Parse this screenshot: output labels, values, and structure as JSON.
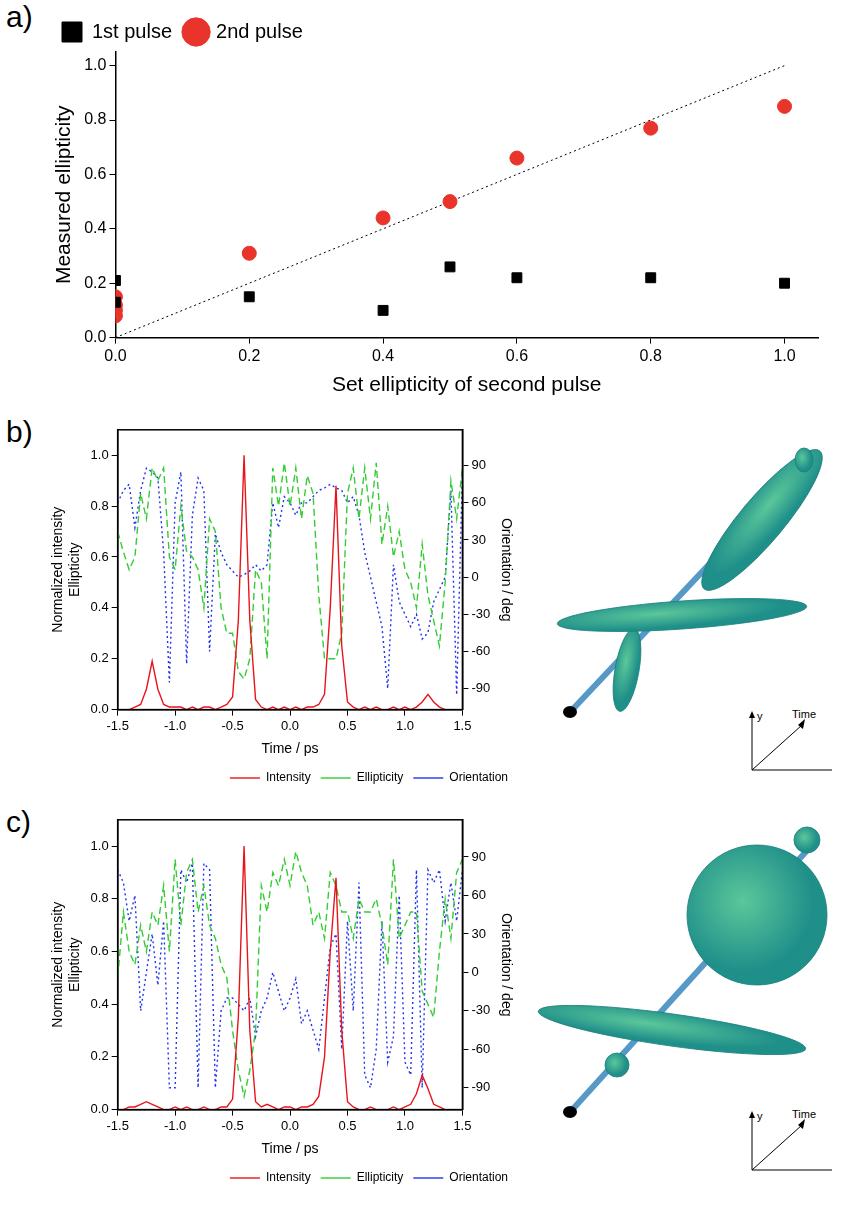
{
  "chart_data": [
    {
      "panel": "a)",
      "type": "scatter",
      "xlabel": "Set ellipticity of second pulse",
      "ylabel": "Measured ellipticity",
      "xlim": [
        0,
        1.05
      ],
      "ylim": [
        0,
        1.05
      ],
      "xticks": [
        {
          "value": 0,
          "label": "0.0"
        },
        {
          "value": 0.2,
          "label": "0.2"
        },
        {
          "value": 0.4,
          "label": "0.4"
        },
        {
          "value": 0.6,
          "label": "0.6"
        },
        {
          "value": 0.8,
          "label": "0.8"
        },
        {
          "value": 1,
          "label": "1.0"
        }
      ],
      "yticks": [
        {
          "value": 0,
          "label": "0.0"
        },
        {
          "value": 0.2,
          "label": "0.2"
        },
        {
          "value": 0.4,
          "label": "0.4"
        },
        {
          "value": 0.6,
          "label": "0.6"
        },
        {
          "value": 0.8,
          "label": "0.8"
        },
        {
          "value": 1,
          "label": "1.0"
        }
      ],
      "grid": false,
      "legend": "top-left",
      "series": [
        {
          "name": "1st pulse",
          "color": "#000000",
          "marker": "square",
          "x": [
            0,
            0,
            0.2,
            0.4,
            0.5,
            0.6,
            0.8,
            1.0
          ],
          "values": [
            0.21,
            0.13,
            0.15,
            0.1,
            0.26,
            0.22,
            0.22,
            0.2
          ]
        },
        {
          "name": "2nd pulse",
          "color": "#e8342a",
          "marker": "circle",
          "x": [
            0,
            0,
            0,
            0,
            0.2,
            0.4,
            0.5,
            0.6,
            0.8,
            1.0
          ],
          "values": [
            0.15,
            0.12,
            0.1,
            0.08,
            0.31,
            0.44,
            0.5,
            0.66,
            0.77,
            0.85
          ]
        },
        {
          "type": "line",
          "color": "#000000",
          "line_style": "dotted",
          "marker": "none",
          "x": [
            0,
            1
          ],
          "values": [
            0,
            1
          ]
        }
      ]
    },
    {
      "panel": "b)",
      "type": "line",
      "xlabel": "Time / ps",
      "ylabel": [
        "Normalized intensity",
        "Ellipticity"
      ],
      "y2label": "Orientation / deg",
      "xlim": [
        -1.5,
        1.5
      ],
      "ylim": [
        0,
        1.1
      ],
      "y2lim": [
        -107,
        119
      ],
      "xticks": [
        {
          "value": -1.5,
          "label": "-1.5"
        },
        {
          "value": -1,
          "label": "-1.0"
        },
        {
          "value": -0.5,
          "label": "-0.5"
        },
        {
          "value": 0,
          "label": "0.0"
        },
        {
          "value": 0.5,
          "label": "0.5"
        },
        {
          "value": 1,
          "label": "1.0"
        },
        {
          "value": 1.5,
          "label": "1.5"
        }
      ],
      "yticks": [
        {
          "value": 0,
          "label": "0.0"
        },
        {
          "value": 0.2,
          "label": "0.2"
        },
        {
          "value": 0.4,
          "label": "0.4"
        },
        {
          "value": 0.6,
          "label": "0.6"
        },
        {
          "value": 0.8,
          "label": "0.8"
        },
        {
          "value": 1,
          "label": "1.0"
        }
      ],
      "y2ticks": [
        -90,
        -60,
        -30,
        0,
        30,
        60,
        90
      ],
      "grid": false,
      "legend": "bottom-right",
      "inset_axes": [
        "y",
        "Time"
      ],
      "x": [
        -1.5,
        -1.45,
        -1.4,
        -1.35,
        -1.3,
        -1.25,
        -1.2,
        -1.15,
        -1.1,
        -1.05,
        -1.0,
        -0.95,
        -0.9,
        -0.85,
        -0.8,
        -0.75,
        -0.7,
        -0.65,
        -0.6,
        -0.55,
        -0.5,
        -0.45,
        -0.4,
        -0.35,
        -0.3,
        -0.25,
        -0.2,
        -0.15,
        -0.1,
        -0.05,
        0,
        0.05,
        0.1,
        0.15,
        0.2,
        0.25,
        0.3,
        0.35,
        0.4,
        0.45,
        0.5,
        0.55,
        0.6,
        0.65,
        0.7,
        0.75,
        0.8,
        0.85,
        0.9,
        0.95,
        1.0,
        1.05,
        1.1,
        1.15,
        1.2,
        1.25,
        1.3,
        1.35,
        1.4,
        1.45,
        1.5
      ],
      "series": [
        {
          "name": "Intensity",
          "color": "#e8141b",
          "line_style": "solid",
          "values": [
            0,
            0,
            0,
            0.01,
            0.02,
            0.08,
            0.19,
            0.08,
            0.02,
            0.01,
            0.01,
            0.01,
            0,
            0.01,
            0,
            0.01,
            0.01,
            0,
            0.01,
            0.02,
            0.05,
            0.35,
            1.0,
            0.35,
            0.04,
            0.01,
            0,
            0.01,
            0,
            0.01,
            0,
            0.01,
            0,
            0.01,
            0.01,
            0.02,
            0.06,
            0.4,
            0.88,
            0.25,
            0.03,
            0.01,
            0,
            0.01,
            0,
            0.01,
            0,
            0,
            0.01,
            0,
            0.01,
            0,
            0.01,
            0.03,
            0.06,
            0.03,
            0.01,
            0,
            0,
            0,
            0
          ]
        },
        {
          "name": "Ellipticity",
          "color": "#33cc33",
          "line_style": "dashed",
          "values": [
            0.7,
            0.62,
            0.55,
            0.6,
            0.85,
            0.75,
            0.95,
            0.9,
            0.95,
            0.6,
            0.55,
            0.8,
            0.62,
            0.6,
            0.55,
            0.4,
            0.75,
            0.7,
            0.4,
            0.3,
            0.3,
            0.15,
            0.12,
            0.2,
            0.55,
            0.5,
            0.2,
            0.95,
            0.8,
            0.97,
            0.8,
            0.95,
            0.75,
            0.92,
            0.85,
            0.45,
            0.2,
            0.2,
            0.2,
            0.3,
            0.85,
            0.95,
            0.75,
            0.95,
            0.75,
            0.97,
            0.65,
            0.8,
            0.6,
            0.7,
            0.55,
            0.5,
            0.4,
            0.65,
            0.45,
            0.35,
            0.25,
            0.5,
            0.9,
            0.75,
            0.95
          ]
        },
        {
          "name": "Orientation",
          "color": "#2233ee",
          "line_style": "dotted",
          "axis": "y2",
          "values": [
            60,
            70,
            75,
            40,
            70,
            88,
            85,
            80,
            20,
            -85,
            60,
            85,
            -70,
            50,
            80,
            70,
            -60,
            35,
            20,
            10,
            5,
            0,
            2,
            5,
            10,
            5,
            10,
            60,
            40,
            65,
            60,
            50,
            60,
            60,
            65,
            70,
            72,
            75,
            72,
            70,
            60,
            65,
            50,
            20,
            0,
            -20,
            -40,
            -90,
            10,
            -20,
            -30,
            -40,
            -30,
            -50,
            -45,
            -20,
            -10,
            0,
            70,
            -95,
            85
          ]
        }
      ]
    },
    {
      "panel": "c)",
      "type": "line",
      "xlabel": "Time / ps",
      "ylabel": [
        "Normalized intensity",
        "Ellipticity"
      ],
      "y2label": "Orientation / deg",
      "xlim": [
        -1.5,
        1.5
      ],
      "ylim": [
        0,
        1.1
      ],
      "y2lim": [
        -107,
        119
      ],
      "xticks": [
        {
          "value": -1.5,
          "label": "-1.5"
        },
        {
          "value": -1,
          "label": "-1.0"
        },
        {
          "value": -0.5,
          "label": "-0.5"
        },
        {
          "value": 0,
          "label": "0.0"
        },
        {
          "value": 0.5,
          "label": "0.5"
        },
        {
          "value": 1,
          "label": "1.0"
        },
        {
          "value": 1.5,
          "label": "1.5"
        }
      ],
      "yticks": [
        {
          "value": 0,
          "label": "0.0"
        },
        {
          "value": 0.2,
          "label": "0.2"
        },
        {
          "value": 0.4,
          "label": "0.4"
        },
        {
          "value": 0.6,
          "label": "0.6"
        },
        {
          "value": 0.8,
          "label": "0.8"
        },
        {
          "value": 1,
          "label": "1.0"
        }
      ],
      "y2ticks": [
        -90,
        -60,
        -30,
        0,
        30,
        60,
        90
      ],
      "grid": false,
      "legend": "bottom-right",
      "inset_axes": [
        "y",
        "Time"
      ],
      "x": [
        -1.5,
        -1.45,
        -1.4,
        -1.35,
        -1.3,
        -1.25,
        -1.2,
        -1.15,
        -1.1,
        -1.05,
        -1.0,
        -0.95,
        -0.9,
        -0.85,
        -0.8,
        -0.75,
        -0.7,
        -0.65,
        -0.6,
        -0.55,
        -0.5,
        -0.45,
        -0.4,
        -0.35,
        -0.3,
        -0.25,
        -0.2,
        -0.15,
        -0.1,
        -0.05,
        0,
        0.05,
        0.1,
        0.15,
        0.2,
        0.25,
        0.3,
        0.35,
        0.4,
        0.45,
        0.5,
        0.55,
        0.6,
        0.65,
        0.7,
        0.75,
        0.8,
        0.85,
        0.9,
        0.95,
        1.0,
        1.05,
        1.1,
        1.15,
        1.2,
        1.25,
        1.3,
        1.35,
        1.4,
        1.45,
        1.5
      ],
      "series": [
        {
          "name": "Intensity",
          "color": "#e8141b",
          "line_style": "solid",
          "values": [
            0,
            0,
            0.01,
            0.01,
            0.02,
            0.03,
            0.02,
            0.01,
            0,
            0,
            0.01,
            0,
            0.01,
            0,
            0,
            0.01,
            0,
            0,
            0.01,
            0.01,
            0.04,
            0.35,
            1.0,
            0.3,
            0.03,
            0.01,
            0.02,
            0.01,
            0,
            0.01,
            0.01,
            0,
            0.01,
            0.01,
            0.02,
            0.05,
            0.2,
            0.6,
            0.88,
            0.3,
            0.03,
            0.01,
            0,
            0,
            0.01,
            0,
            0,
            0,
            0.01,
            0,
            0.01,
            0.02,
            0.06,
            0.13,
            0.08,
            0.02,
            0.01,
            0,
            0,
            0,
            0
          ]
        },
        {
          "name": "Ellipticity",
          "color": "#33cc33",
          "line_style": "dashed",
          "values": [
            0.5,
            0.75,
            0.6,
            0.55,
            0.7,
            0.6,
            0.75,
            0.7,
            0.85,
            0.6,
            0.95,
            0.7,
            0.9,
            0.95,
            0.75,
            0.85,
            0.7,
            0.65,
            0.55,
            0.5,
            0.3,
            0.15,
            0.05,
            0.15,
            0.3,
            0.85,
            0.75,
            0.9,
            0.85,
            0.95,
            0.85,
            0.98,
            0.9,
            0.85,
            0.7,
            0.75,
            0.65,
            0.9,
            0.85,
            0.75,
            0.75,
            0.65,
            0.8,
            0.75,
            0.75,
            0.8,
            0.7,
            0.55,
            0.95,
            0.65,
            0.7,
            0.75,
            0.75,
            0.45,
            0.4,
            0.35,
            0.6,
            0.8,
            0.65,
            0.9,
            0.95
          ]
        },
        {
          "name": "Orientation",
          "color": "#2233ee",
          "line_style": "dotted",
          "axis": "y2",
          "values": [
            80,
            70,
            40,
            60,
            -30,
            0,
            30,
            -10,
            40,
            -90,
            -90,
            80,
            70,
            85,
            -90,
            85,
            80,
            -90,
            -30,
            -20,
            -20,
            -25,
            -30,
            -20,
            -50,
            -30,
            -20,
            0,
            -15,
            -30,
            -20,
            -5,
            -40,
            -30,
            -45,
            -60,
            -20,
            20,
            30,
            -60,
            40,
            -30,
            70,
            -80,
            -90,
            -60,
            40,
            -70,
            -50,
            60,
            -70,
            -80,
            80,
            -90,
            80,
            70,
            80,
            40,
            70,
            40,
            80
          ]
        }
      ]
    }
  ]
}
